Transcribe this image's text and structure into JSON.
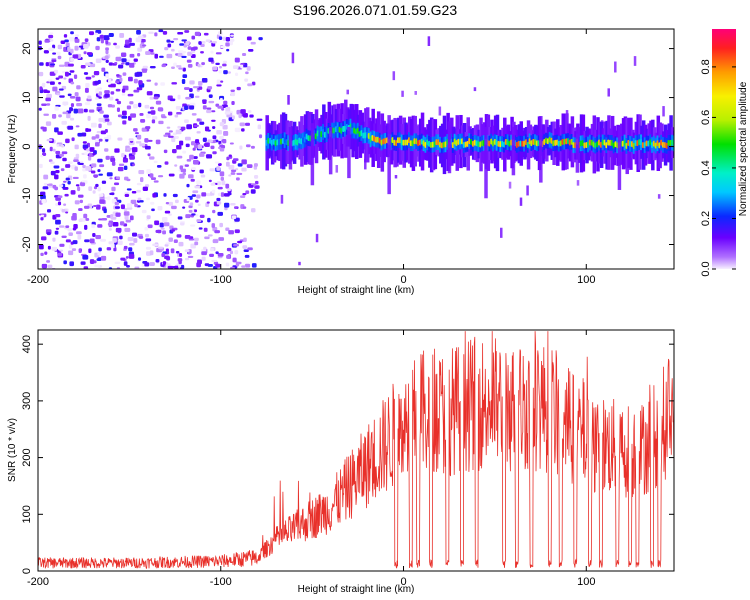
{
  "title": "S196.2026.071.01.59.G23",
  "chart_data": [
    {
      "type": "heatmap",
      "xlabel": "Height of straight line (km)",
      "ylabel": "Frequency (Hz)",
      "xlim": [
        -200,
        148
      ],
      "ylim": [
        -25,
        24
      ],
      "xticks": [
        -200,
        -100,
        0,
        100
      ],
      "yticks": [
        -20,
        -10,
        0,
        10,
        20
      ],
      "description_trace": "strong signal ridge near 0-5 Hz from about -75 km to 148 km; scattered weak noise for heights below -80 km",
      "ridge": {
        "x": [
          -75,
          -60,
          -50,
          -40,
          -30,
          -20,
          -10,
          0,
          20,
          40,
          60,
          80,
          100,
          120,
          148
        ],
        "freq": [
          1,
          1,
          2,
          3,
          4,
          2,
          1,
          1,
          0.5,
          0.8,
          0.5,
          1,
          0.5,
          0.5,
          0.5
        ]
      },
      "colorbar": {
        "label": "Normalized spectral amplitude",
        "ticks": [
          "0.0",
          "0.2",
          "0.4",
          "0.6",
          "0.8"
        ],
        "range": [
          0,
          0.95
        ]
      }
    },
    {
      "type": "line",
      "xlabel": "Height of straight line (km)",
      "ylabel": "SNR (10 * v/v)",
      "xlim": [
        -200,
        148
      ],
      "ylim": [
        0,
        425
      ],
      "xticks": [
        -200,
        -100,
        0,
        100
      ],
      "yticks": [
        0,
        100,
        200,
        300,
        400
      ],
      "color": "#e8302a",
      "envelope": {
        "x": [
          -200,
          -150,
          -100,
          -80,
          -70,
          -60,
          -50,
          -40,
          -30,
          -20,
          -10,
          -5,
          0,
          10,
          20,
          30,
          40,
          50,
          60,
          70,
          80,
          90,
          100,
          110,
          120,
          130,
          140,
          148
        ],
        "snr": [
          15,
          15,
          18,
          25,
          60,
          80,
          100,
          120,
          160,
          200,
          240,
          260,
          280,
          300,
          300,
          310,
          320,
          320,
          310,
          320,
          310,
          280,
          260,
          240,
          230,
          230,
          270,
          310
        ]
      },
      "dropouts_km": [
        -4,
        4,
        8,
        15,
        24,
        32,
        40,
        55,
        62,
        70,
        80,
        86,
        94,
        102,
        108,
        117,
        124,
        128,
        136,
        140
      ]
    }
  ]
}
